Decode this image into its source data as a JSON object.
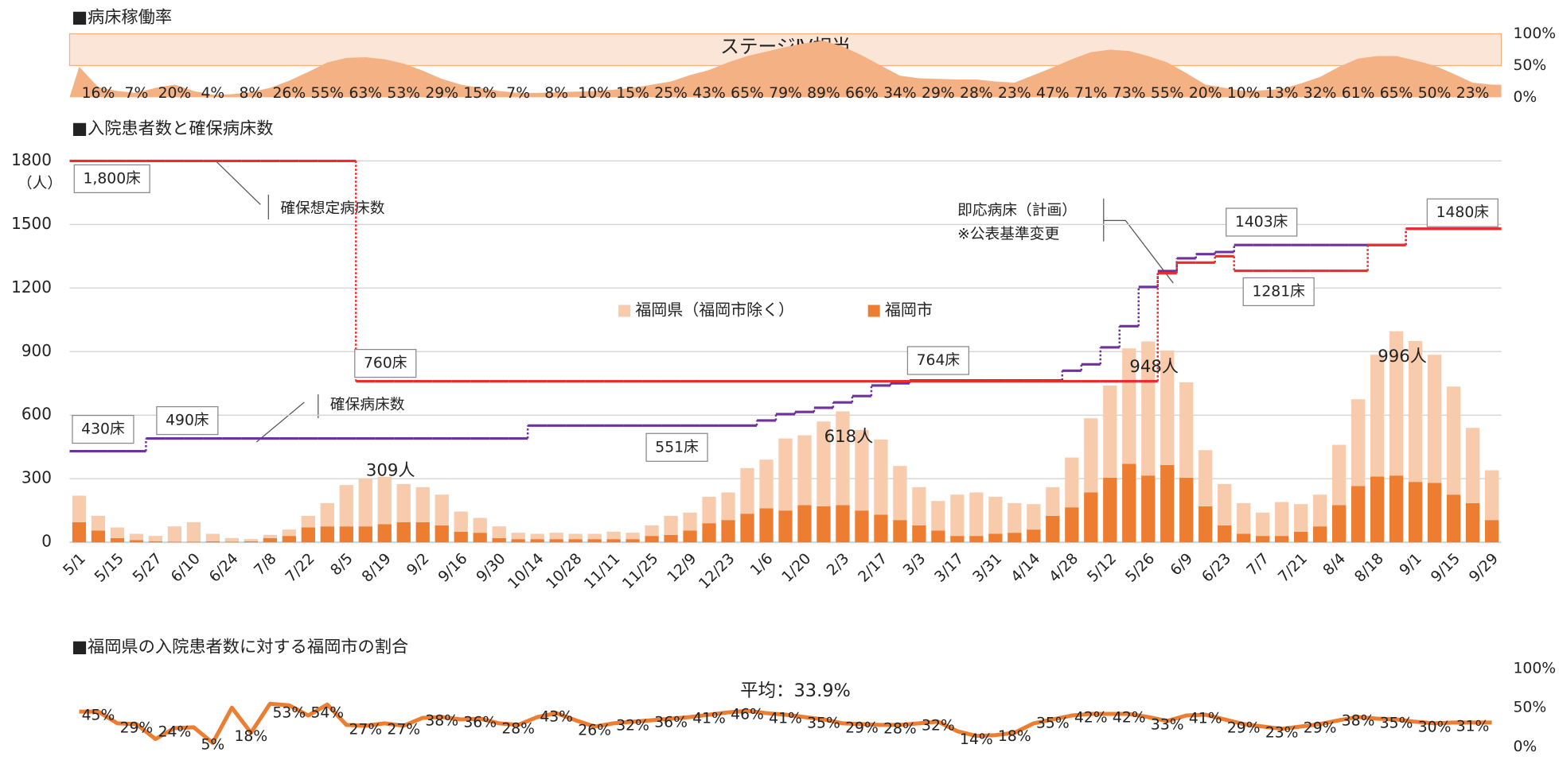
{
  "chart_data": [
    {
      "type": "area",
      "title": "■病床稼働率",
      "color": "#f4b183",
      "band": {
        "label": "ステージⅣ相当",
        "from": 50,
        "to": 100,
        "color": "#fbe5d6"
      },
      "ylim": [
        0,
        100
      ],
      "yticks": [
        {
          "value": 100,
          "label": "100%"
        },
        {
          "value": 50,
          "label": "50%"
        },
        {
          "value": 0,
          "label": "0%"
        }
      ],
      "values": [
        48,
        16,
        10,
        7,
        15,
        20,
        10,
        4,
        5,
        8,
        15,
        26,
        40,
        55,
        62,
        63,
        60,
        53,
        42,
        29,
        20,
        15,
        10,
        7,
        7,
        8,
        9,
        10,
        12,
        15,
        20,
        25,
        35,
        43,
        55,
        65,
        72,
        79,
        85,
        89,
        80,
        66,
        50,
        34,
        30,
        29,
        28,
        28,
        25,
        23,
        35,
        47,
        60,
        71,
        75,
        73,
        65,
        55,
        38,
        20,
        15,
        10,
        11,
        13,
        22,
        32,
        48,
        61,
        65,
        65,
        58,
        50,
        37,
        23,
        20
      ],
      "value_labels": [
        null,
        "16%",
        null,
        "7%",
        null,
        "20%",
        null,
        "4%",
        null,
        "8%",
        null,
        "26%",
        null,
        "55%",
        null,
        "63%",
        null,
        "53%",
        null,
        "29%",
        null,
        "15%",
        null,
        "7%",
        null,
        "8%",
        null,
        "10%",
        null,
        "15%",
        null,
        "25%",
        null,
        "43%",
        null,
        "65%",
        null,
        "79%",
        null,
        "89%",
        null,
        "66%",
        null,
        "34%",
        null,
        "29%",
        null,
        "28%",
        null,
        "23%",
        null,
        "47%",
        null,
        "71%",
        null,
        "73%",
        null,
        "55%",
        null,
        "20%",
        null,
        "10%",
        null,
        "13%",
        null,
        "32%",
        null,
        "61%",
        null,
        "65%",
        null,
        "50%",
        null,
        "23%",
        null
      ]
    },
    {
      "type": "bar",
      "stacked": true,
      "title": "■入院患者数と確保病床数",
      "ylabel": "（人）",
      "grid": true,
      "legend": "center",
      "ylim": [
        0,
        1800
      ],
      "yticks": [
        0,
        300,
        600,
        900,
        1200,
        1500,
        1800
      ],
      "categories": [
        "5/1",
        null,
        "5/15",
        null,
        "5/27",
        null,
        "6/10",
        null,
        "6/24",
        null,
        "7/8",
        null,
        "7/22",
        null,
        "8/5",
        null,
        "8/19",
        null,
        "9/2",
        null,
        "9/16",
        null,
        "9/30",
        null,
        "10/14",
        null,
        "10/28",
        null,
        "11/11",
        null,
        "11/25",
        null,
        "12/9",
        null,
        "12/23",
        null,
        "1/6",
        null,
        "1/20",
        null,
        "2/3",
        null,
        "2/17",
        null,
        "3/3",
        null,
        "3/17",
        null,
        "3/31",
        null,
        "4/14",
        null,
        "4/28",
        null,
        "5/12",
        null,
        "5/26",
        null,
        "6/9",
        null,
        "6/23",
        null,
        "7/7",
        null,
        "7/21",
        null,
        "8/4",
        null,
        "8/18",
        null,
        "9/1",
        null,
        "9/15",
        null,
        "9/29"
      ],
      "series": [
        {
          "name": "福岡県（福岡市除く）",
          "color": "#f8cbad",
          "values": [
            125,
            70,
            50,
            30,
            25,
            72,
            92,
            35,
            17,
            10,
            15,
            30,
            55,
            110,
            195,
            225,
            224,
            180,
            165,
            145,
            95,
            70,
            55,
            30,
            25,
            30,
            25,
            25,
            35,
            30,
            50,
            90,
            85,
            125,
            130,
            215,
            230,
            340,
            330,
            400,
            443,
            380,
            355,
            255,
            180,
            140,
            195,
            205,
            175,
            140,
            120,
            135,
            235,
            350,
            435,
            545,
            633,
            540,
            450,
            265,
            195,
            145,
            110,
            160,
            130,
            150,
            285,
            410,
            575,
            681,
            665,
            605,
            510,
            355,
            235
          ]
        },
        {
          "name": "福岡市",
          "color": "#ed7d31",
          "values": [
            95,
            55,
            20,
            10,
            5,
            3,
            3,
            5,
            3,
            5,
            20,
            30,
            70,
            75,
            75,
            75,
            85,
            95,
            95,
            80,
            50,
            45,
            20,
            15,
            15,
            15,
            15,
            15,
            15,
            15,
            30,
            35,
            55,
            90,
            105,
            135,
            160,
            150,
            175,
            170,
            175,
            150,
            130,
            105,
            80,
            55,
            30,
            30,
            40,
            45,
            60,
            125,
            165,
            235,
            305,
            370,
            315,
            365,
            305,
            170,
            80,
            40,
            30,
            30,
            50,
            75,
            175,
            265,
            310,
            315,
            285,
            280,
            225,
            185,
            105
          ]
        },
        {
          "name": "確保病床数",
          "type": "step",
          "color": "#7030a0",
          "values": [
            430,
            430,
            430,
            430,
            490,
            490,
            490,
            490,
            490,
            490,
            490,
            490,
            490,
            490,
            490,
            490,
            490,
            490,
            490,
            490,
            490,
            490,
            490,
            490,
            551,
            551,
            551,
            551,
            551,
            551,
            551,
            551,
            551,
            551,
            551,
            551,
            575,
            605,
            615,
            635,
            660,
            690,
            740,
            750,
            764,
            764,
            764,
            764,
            764,
            764,
            764,
            764,
            810,
            840,
            920,
            1020,
            1205,
            1280,
            1340,
            1360,
            1370,
            1403,
            1403,
            1403,
            1403,
            1403,
            1403,
            1403,
            1403,
            1403,
            1480,
            1480,
            1480,
            1480,
            1480
          ],
          "value_labels": [
            "430床",
            null,
            null,
            null,
            "490床",
            null,
            null,
            null,
            null,
            null,
            null,
            null,
            null,
            null,
            null,
            null,
            null,
            null,
            null,
            null,
            null,
            null,
            null,
            null,
            null,
            null,
            null,
            null,
            null,
            null,
            null,
            "551床",
            null,
            null,
            null,
            null,
            null,
            null,
            null,
            null,
            null,
            null,
            null,
            null,
            null,
            "764床",
            null,
            null,
            null,
            null,
            null,
            null,
            null,
            null,
            null,
            null,
            null,
            null,
            null,
            null,
            null,
            "1403床",
            null,
            null,
            null,
            null,
            null,
            null,
            null,
            null,
            null,
            null,
            "1480床",
            null,
            null
          ]
        },
        {
          "name": "確保想定病床数",
          "type": "step",
          "color": "#ee2a2a",
          "values": [
            1800,
            1800,
            1800,
            1800,
            1800,
            1800,
            1800,
            1800,
            1800,
            1800,
            1800,
            1800,
            1800,
            1800,
            1800,
            760,
            760,
            760,
            760,
            760,
            760,
            760,
            760,
            760,
            760,
            760,
            760,
            760,
            760,
            760,
            760,
            760,
            760,
            760,
            760,
            760,
            760,
            760,
            760,
            760,
            760,
            760,
            760,
            760,
            760,
            760,
            760,
            760,
            760,
            760,
            760,
            760,
            760,
            760,
            760,
            760,
            760,
            1270,
            1320,
            1320,
            1350,
            1281,
            1281,
            1281,
            1281,
            1281,
            1281,
            1281,
            1403,
            1403,
            1480,
            1480,
            1480,
            1480,
            1480
          ],
          "value_labels": [
            "1,800床",
            null,
            null,
            null,
            null,
            null,
            null,
            null,
            null,
            null,
            null,
            null,
            null,
            null,
            null,
            "760床",
            null,
            null,
            null,
            null,
            null,
            null,
            null,
            null,
            null,
            null,
            null,
            null,
            null,
            null,
            null,
            null,
            null,
            null,
            null,
            null,
            null,
            null,
            null,
            null,
            null,
            null,
            null,
            null,
            null,
            null,
            null,
            null,
            null,
            null,
            null,
            null,
            null,
            null,
            null,
            null,
            null,
            null,
            null,
            null,
            null,
            null,
            "1281床",
            null,
            null,
            null,
            null,
            null,
            null,
            null,
            null,
            null,
            null,
            null,
            null
          ]
        }
      ],
      "total_labels": [
        null,
        null,
        null,
        null,
        null,
        null,
        null,
        null,
        null,
        null,
        null,
        null,
        null,
        null,
        null,
        null,
        "309人",
        null,
        null,
        null,
        null,
        null,
        null,
        null,
        null,
        null,
        null,
        null,
        null,
        null,
        null,
        null,
        null,
        null,
        null,
        null,
        null,
        null,
        null,
        null,
        "618人",
        null,
        null,
        null,
        null,
        null,
        null,
        null,
        null,
        null,
        null,
        null,
        null,
        null,
        null,
        null,
        "948人",
        null,
        null,
        null,
        null,
        null,
        null,
        null,
        null,
        null,
        null,
        null,
        null,
        "996人",
        null,
        null,
        null,
        null,
        null
      ],
      "annotations": [
        "即応病床（計画）",
        "※公表基準変更"
      ]
    },
    {
      "type": "line",
      "title": "■福岡県の入院患者数に対する福岡市の割合",
      "color": "#ed7d31",
      "annotation": "平均：33.9%",
      "ylim": [
        0,
        100
      ],
      "yticks": [
        {
          "value": 100,
          "label": "100%"
        },
        {
          "value": 50,
          "label": "50%"
        },
        {
          "value": 0,
          "label": "0%"
        }
      ],
      "values": [
        45,
        45,
        30,
        29,
        10,
        24,
        25,
        5,
        50,
        18,
        55,
        53,
        40,
        54,
        28,
        27,
        30,
        27,
        37,
        38,
        35,
        36,
        30,
        28,
        38,
        43,
        34,
        26,
        30,
        32,
        34,
        36,
        38,
        41,
        44,
        46,
        43,
        41,
        38,
        35,
        30,
        29,
        28,
        28,
        30,
        32,
        20,
        14,
        15,
        18,
        30,
        35,
        40,
        42,
        42,
        42,
        38,
        33,
        40,
        41,
        35,
        29,
        26,
        23,
        26,
        29,
        34,
        38,
        36,
        35,
        32,
        30,
        31,
        31,
        31
      ],
      "value_labels": [
        null,
        "45%",
        null,
        "29%",
        null,
        "24%",
        null,
        "5%",
        null,
        "18%",
        null,
        "53%",
        null,
        "54%",
        null,
        "27%",
        null,
        "27%",
        null,
        "38%",
        null,
        "36%",
        null,
        "28%",
        null,
        "43%",
        null,
        "26%",
        null,
        "32%",
        null,
        "36%",
        null,
        "41%",
        null,
        "46%",
        null,
        "41%",
        null,
        "35%",
        null,
        "29%",
        null,
        "28%",
        null,
        "32%",
        null,
        "14%",
        null,
        "18%",
        null,
        "35%",
        null,
        "42%",
        null,
        "42%",
        null,
        "33%",
        null,
        "41%",
        null,
        "29%",
        null,
        "23%",
        null,
        "29%",
        null,
        "38%",
        null,
        "35%",
        null,
        "30%",
        null,
        "31%",
        null
      ]
    }
  ]
}
